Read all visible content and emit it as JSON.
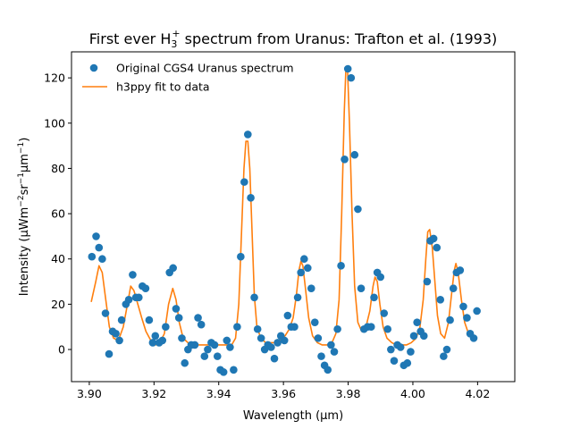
{
  "chart_data": {
    "type": "scatter",
    "title_parts": [
      "First ever H",
      "3",
      "+",
      " spectrum from Uranus: Trafton et al. (1993)"
    ],
    "xlabel_parts": [
      "Wavelength (",
      "μ",
      "m)"
    ],
    "ylabel_parts": [
      "Intensity (",
      "μ",
      "Wm",
      "−2",
      "sr",
      "−1",
      "μ",
      "m",
      "−1",
      ")"
    ],
    "xlim": [
      3.8945,
      4.0315
    ],
    "ylim": [
      -14.2,
      131.5
    ],
    "x_ticks": [
      3.9,
      3.92,
      3.94,
      3.96,
      3.98,
      4.0,
      4.02
    ],
    "x_tick_labels": [
      "3.90",
      "3.92",
      "3.94",
      "3.96",
      "3.98",
      "4.00",
      "4.02"
    ],
    "y_ticks": [
      0,
      20,
      40,
      60,
      80,
      100,
      120
    ],
    "y_tick_labels": [
      "0",
      "20",
      "40",
      "60",
      "80",
      "100",
      "120"
    ],
    "grid": false,
    "legend_position": "upper-left",
    "colors": {
      "scatter": "#1f77b4",
      "fit": "#ff7f0e"
    },
    "series": [
      {
        "name": "Original CGS4 Uranus spectrum",
        "kind": "scatter",
        "points": [
          [
            3.9008,
            41
          ],
          [
            3.9021,
            50
          ],
          [
            3.903,
            45
          ],
          [
            3.904,
            40
          ],
          [
            3.905,
            16
          ],
          [
            3.9061,
            -2
          ],
          [
            3.9072,
            8
          ],
          [
            3.9082,
            7
          ],
          [
            3.9093,
            4
          ],
          [
            3.91,
            13
          ],
          [
            3.9113,
            20
          ],
          [
            3.9122,
            22
          ],
          [
            3.9134,
            33
          ],
          [
            3.9144,
            23
          ],
          [
            3.9153,
            23
          ],
          [
            3.9164,
            28
          ],
          [
            3.9174,
            27
          ],
          [
            3.9185,
            13
          ],
          [
            3.9196,
            3
          ],
          [
            3.9204,
            6
          ],
          [
            3.9216,
            3
          ],
          [
            3.9226,
            4
          ],
          [
            3.9236,
            10
          ],
          [
            3.9248,
            34
          ],
          [
            3.9259,
            36
          ],
          [
            3.9268,
            18
          ],
          [
            3.9277,
            14
          ],
          [
            3.9286,
            5
          ],
          [
            3.9295,
            -6
          ],
          [
            3.9305,
            0
          ],
          [
            3.9315,
            2
          ],
          [
            3.9326,
            2
          ],
          [
            3.9336,
            14
          ],
          [
            3.9346,
            11
          ],
          [
            3.9356,
            -3
          ],
          [
            3.9366,
            0
          ],
          [
            3.9377,
            3
          ],
          [
            3.9387,
            2
          ],
          [
            3.9396,
            -3
          ],
          [
            3.9405,
            -9
          ],
          [
            3.9415,
            -10
          ],
          [
            3.9425,
            4
          ],
          [
            3.9435,
            1
          ],
          [
            3.9446,
            -9
          ],
          [
            3.9457,
            10
          ],
          [
            3.9468,
            41
          ],
          [
            3.9479,
            74
          ],
          [
            3.949,
            95
          ],
          [
            3.9499,
            67
          ],
          [
            3.951,
            23
          ],
          [
            3.952,
            9
          ],
          [
            3.9531,
            5
          ],
          [
            3.9542,
            0
          ],
          [
            3.9552,
            2
          ],
          [
            3.9562,
            1
          ],
          [
            3.9572,
            -4
          ],
          [
            3.9582,
            3
          ],
          [
            3.9592,
            6
          ],
          [
            3.9603,
            4
          ],
          [
            3.9613,
            15
          ],
          [
            3.9624,
            10
          ],
          [
            3.9634,
            10
          ],
          [
            3.9644,
            23
          ],
          [
            3.9654,
            34
          ],
          [
            3.9664,
            40
          ],
          [
            3.9675,
            36
          ],
          [
            3.9686,
            27
          ],
          [
            3.9697,
            12
          ],
          [
            3.9707,
            5
          ],
          [
            3.9717,
            -3
          ],
          [
            3.9727,
            -7
          ],
          [
            3.9737,
            -9
          ],
          [
            3.9747,
            2
          ],
          [
            3.9757,
            -1
          ],
          [
            3.9767,
            9
          ],
          [
            3.9778,
            37
          ],
          [
            3.9789,
            84
          ],
          [
            3.9799,
            124
          ],
          [
            3.9809,
            120
          ],
          [
            3.982,
            86
          ],
          [
            3.983,
            62
          ],
          [
            3.984,
            27
          ],
          [
            3.9849,
            9
          ],
          [
            3.986,
            10
          ],
          [
            3.9871,
            10
          ],
          [
            3.988,
            23
          ],
          [
            3.989,
            34
          ],
          [
            3.99,
            32
          ],
          [
            3.9911,
            16
          ],
          [
            3.9922,
            9
          ],
          [
            3.9932,
            0
          ],
          [
            3.9942,
            -5
          ],
          [
            3.9952,
            2
          ],
          [
            3.9962,
            1
          ],
          [
            3.9972,
            -7
          ],
          [
            3.9983,
            -6
          ],
          [
            3.9993,
            -1
          ],
          [
            4.0003,
            6
          ],
          [
            4.0013,
            12
          ],
          [
            4.0024,
            8
          ],
          [
            4.0034,
            6
          ],
          [
            4.0044,
            30
          ],
          [
            4.0054,
            48
          ],
          [
            4.0064,
            49
          ],
          [
            4.0074,
            45
          ],
          [
            4.0085,
            22
          ],
          [
            4.0095,
            -3
          ],
          [
            4.0105,
            0
          ],
          [
            4.0115,
            13
          ],
          [
            4.0125,
            27
          ],
          [
            4.0135,
            34
          ],
          [
            4.0146,
            35
          ],
          [
            4.0156,
            19
          ],
          [
            4.0167,
            14
          ],
          [
            4.0177,
            7
          ],
          [
            4.0188,
            5
          ],
          [
            4.0198,
            17
          ]
        ]
      },
      {
        "name": "h3ppy fit to data",
        "kind": "line",
        "points": [
          [
            3.9006,
            21
          ],
          [
            3.902,
            30
          ],
          [
            3.903,
            37
          ],
          [
            3.904,
            34
          ],
          [
            3.905,
            23
          ],
          [
            3.9062,
            10
          ],
          [
            3.9075,
            5
          ],
          [
            3.909,
            4
          ],
          [
            3.9105,
            10
          ],
          [
            3.9118,
            20
          ],
          [
            3.9128,
            28
          ],
          [
            3.9138,
            26
          ],
          [
            3.915,
            20
          ],
          [
            3.9162,
            14
          ],
          [
            3.9175,
            8
          ],
          [
            3.919,
            4
          ],
          [
            3.9205,
            2
          ],
          [
            3.9218,
            3
          ],
          [
            3.9232,
            7
          ],
          [
            3.9245,
            20
          ],
          [
            3.9258,
            27
          ],
          [
            3.9268,
            22
          ],
          [
            3.9278,
            12
          ],
          [
            3.929,
            5
          ],
          [
            3.9305,
            3
          ],
          [
            3.932,
            2
          ],
          [
            3.9335,
            2
          ],
          [
            3.935,
            2
          ],
          [
            3.9365,
            2
          ],
          [
            3.938,
            2
          ],
          [
            3.9395,
            2
          ],
          [
            3.941,
            2
          ],
          [
            3.9425,
            2
          ],
          [
            3.944,
            2
          ],
          [
            3.9452,
            5
          ],
          [
            3.9462,
            20
          ],
          [
            3.947,
            50
          ],
          [
            3.9478,
            80
          ],
          [
            3.9484,
            92
          ],
          [
            3.949,
            92
          ],
          [
            3.9496,
            80
          ],
          [
            3.9503,
            52
          ],
          [
            3.951,
            24
          ],
          [
            3.9518,
            10
          ],
          [
            3.953,
            5
          ],
          [
            3.9545,
            3
          ],
          [
            3.956,
            3
          ],
          [
            3.9575,
            3
          ],
          [
            3.959,
            4
          ],
          [
            3.9605,
            6
          ],
          [
            3.9618,
            9
          ],
          [
            3.963,
            14
          ],
          [
            3.964,
            24
          ],
          [
            3.9648,
            35
          ],
          [
            3.9654,
            39
          ],
          [
            3.966,
            37
          ],
          [
            3.9668,
            27
          ],
          [
            3.9678,
            14
          ],
          [
            3.969,
            6
          ],
          [
            3.9705,
            3
          ],
          [
            3.972,
            2
          ],
          [
            3.9735,
            2
          ],
          [
            3.975,
            3
          ],
          [
            3.9762,
            7
          ],
          [
            3.9772,
            22
          ],
          [
            3.978,
            60
          ],
          [
            3.9788,
            105
          ],
          [
            3.9793,
            124
          ],
          [
            3.9798,
            124
          ],
          [
            3.9804,
            100
          ],
          [
            3.9812,
            60
          ],
          [
            3.982,
            28
          ],
          [
            3.983,
            12
          ],
          [
            3.9842,
            8
          ],
          [
            3.9855,
            10
          ],
          [
            3.9867,
            17
          ],
          [
            3.9877,
            28
          ],
          [
            3.9883,
            32
          ],
          [
            3.989,
            30
          ],
          [
            3.9898,
            20
          ],
          [
            3.9908,
            10
          ],
          [
            3.992,
            5
          ],
          [
            3.9935,
            3
          ],
          [
            3.995,
            2
          ],
          [
            3.9965,
            2
          ],
          [
            3.998,
            2
          ],
          [
            3.9995,
            3
          ],
          [
            4.001,
            5
          ],
          [
            4.0022,
            10
          ],
          [
            4.0032,
            22
          ],
          [
            4.004,
            40
          ],
          [
            4.0046,
            52
          ],
          [
            4.0052,
            53
          ],
          [
            4.006,
            45
          ],
          [
            4.0068,
            30
          ],
          [
            4.0076,
            15
          ],
          [
            4.0086,
            7
          ],
          [
            4.0098,
            5
          ],
          [
            4.011,
            12
          ],
          [
            4.012,
            25
          ],
          [
            4.0128,
            35
          ],
          [
            4.0133,
            38
          ],
          [
            4.014,
            34
          ],
          [
            4.015,
            22
          ],
          [
            4.016,
            12
          ],
          [
            4.0172,
            7
          ],
          [
            4.0185,
            5
          ],
          [
            4.0195,
            4
          ]
        ]
      }
    ]
  }
}
